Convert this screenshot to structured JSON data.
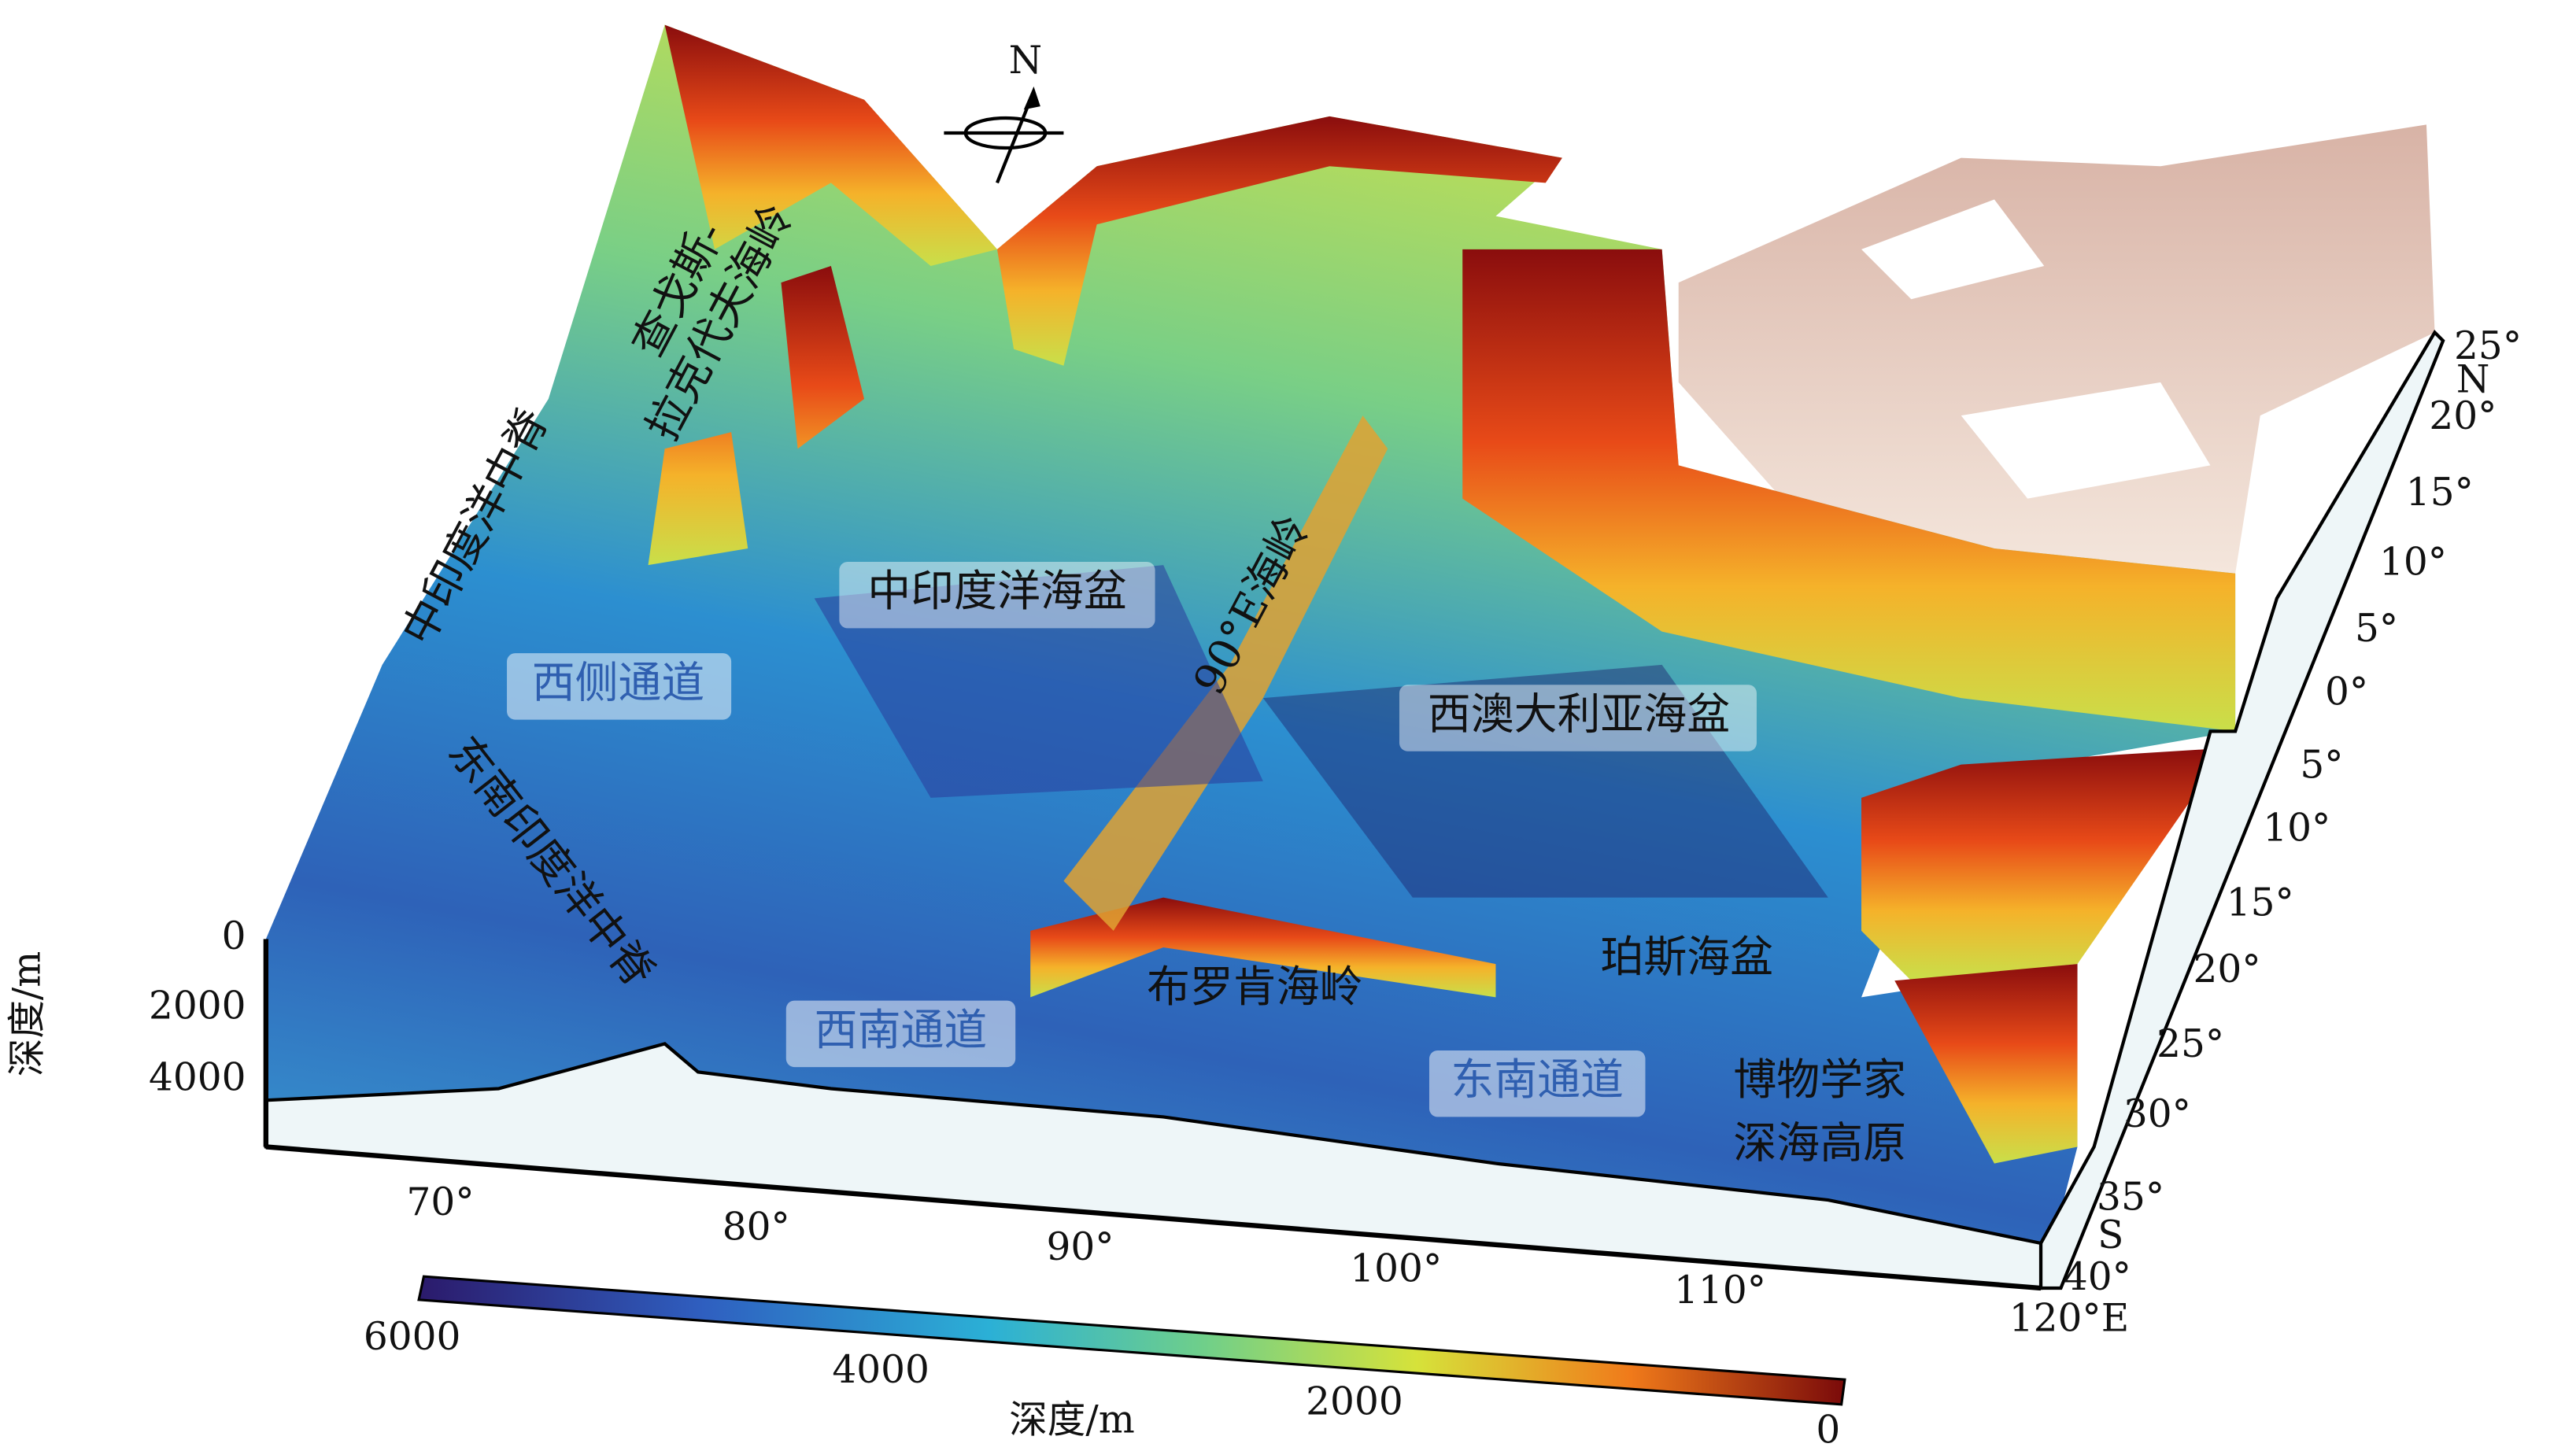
{
  "map": {
    "north": "N",
    "depth_axis": {
      "title": "深度/m",
      "ticks": [
        "0",
        "2000",
        "4000"
      ]
    },
    "lon_ticks": [
      "70°",
      "80°",
      "90°",
      "100°",
      "110°",
      "120°E"
    ],
    "lat_ticks": [
      "25°",
      "N",
      "20°",
      "15°",
      "10°",
      "5°",
      "0°",
      "5°",
      "10°",
      "15°",
      "20°",
      "25°",
      "30°",
      "35°",
      "S",
      "40°"
    ],
    "colorbar": {
      "title": "深度/m",
      "ticks": [
        "6000",
        "4000",
        "2000",
        "0"
      ]
    },
    "labels": {
      "chagos_1": "查戈斯-",
      "chagos_2": "拉克代夫海岭",
      "cir": "中印度洋中脊",
      "cib": "中印度洋海盆",
      "west_channel": "西侧通道",
      "seir": "东南印度洋中脊",
      "ninety_east": "90°E海岭",
      "wab": "西澳大利亚海盆",
      "broken": "布罗肯海岭",
      "perth": "珀斯海盆",
      "sw_channel": "西南通道",
      "se_channel": "东南通道",
      "naturaliste_1": "博物学家",
      "naturaliste_2": "深海高原"
    }
  }
}
